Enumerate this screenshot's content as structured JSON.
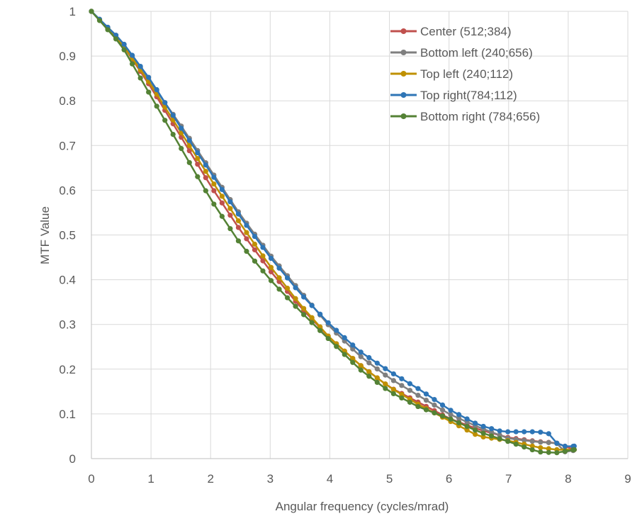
{
  "chart_data": {
    "type": "line",
    "title": "",
    "xlabel": "Angular frequency (cycles/mrad)",
    "ylabel": "MTF Value",
    "xlim": [
      0,
      9
    ],
    "ylim": [
      0,
      1
    ],
    "x_ticks": [
      "0",
      "1",
      "2",
      "3",
      "4",
      "5",
      "6",
      "7",
      "8",
      "9"
    ],
    "y_ticks": [
      "0",
      "0.1",
      "0.2",
      "0.3",
      "0.4",
      "0.5",
      "0.6",
      "0.7",
      "0.8",
      "0.9",
      "1"
    ],
    "grid": "vertical and horizontal",
    "legend_position": "top-right",
    "series": [
      {
        "name": "Center (512;384)",
        "color": "#c0504d",
        "points": [
          [
            0,
            1.0
          ],
          [
            0.5,
            0.93
          ],
          [
            1,
            0.83
          ],
          [
            1.5,
            0.72
          ],
          [
            2,
            0.61
          ],
          [
            2.5,
            0.51
          ],
          [
            3,
            0.42
          ],
          [
            3.5,
            0.34
          ],
          [
            4,
            0.27
          ],
          [
            4.5,
            0.21
          ],
          [
            5,
            0.16
          ],
          [
            5.5,
            0.125
          ],
          [
            6,
            0.09
          ],
          [
            6.5,
            0.065
          ],
          [
            7,
            0.047
          ],
          [
            7.5,
            0.038
          ],
          [
            7.8,
            0.035
          ],
          [
            8.1,
            0.02
          ]
        ]
      },
      {
        "name": "Bottom left (240;656)",
        "color": "#7f7f7f",
        "points": [
          [
            0,
            1.0
          ],
          [
            0.5,
            0.935
          ],
          [
            1,
            0.84
          ],
          [
            1.5,
            0.745
          ],
          [
            2,
            0.645
          ],
          [
            2.5,
            0.545
          ],
          [
            3,
            0.455
          ],
          [
            3.5,
            0.375
          ],
          [
            4,
            0.295
          ],
          [
            4.5,
            0.23
          ],
          [
            5,
            0.18
          ],
          [
            5.5,
            0.14
          ],
          [
            6,
            0.1
          ],
          [
            6.5,
            0.07
          ],
          [
            7,
            0.045
          ],
          [
            7.5,
            0.037
          ],
          [
            7.8,
            0.035
          ],
          [
            8.0,
            0.008
          ],
          [
            8.1,
            0.02
          ]
        ]
      },
      {
        "name": "Top left (240;112)",
        "color": "#bf9000",
        "points": [
          [
            0,
            1.0
          ],
          [
            0.5,
            0.93
          ],
          [
            1,
            0.835
          ],
          [
            1.5,
            0.73
          ],
          [
            2,
            0.625
          ],
          [
            2.5,
            0.525
          ],
          [
            3,
            0.43
          ],
          [
            3.5,
            0.345
          ],
          [
            4,
            0.27
          ],
          [
            4.5,
            0.21
          ],
          [
            5,
            0.16
          ],
          [
            5.5,
            0.12
          ],
          [
            6,
            0.085
          ],
          [
            6.5,
            0.05
          ],
          [
            7,
            0.04
          ],
          [
            7.5,
            0.025
          ],
          [
            7.8,
            0.02
          ],
          [
            8.1,
            0.02
          ]
        ]
      },
      {
        "name": "Top right(784;112)",
        "color": "#2e75b6",
        "points": [
          [
            0,
            1.0
          ],
          [
            0.5,
            0.935
          ],
          [
            1,
            0.845
          ],
          [
            1.5,
            0.74
          ],
          [
            2,
            0.64
          ],
          [
            2.5,
            0.54
          ],
          [
            3,
            0.45
          ],
          [
            3.5,
            0.37
          ],
          [
            4,
            0.3
          ],
          [
            4.5,
            0.24
          ],
          [
            5,
            0.195
          ],
          [
            5.5,
            0.155
          ],
          [
            6,
            0.11
          ],
          [
            6.5,
            0.075
          ],
          [
            6.9,
            0.06
          ],
          [
            7.5,
            0.06
          ],
          [
            7.7,
            0.055
          ],
          [
            7.8,
            0.035
          ],
          [
            8.0,
            0.025
          ],
          [
            8.1,
            0.028
          ]
        ]
      },
      {
        "name": "Bottom right (784;656)",
        "color": "#548235",
        "points": [
          [
            0,
            1.0
          ],
          [
            0.5,
            0.925
          ],
          [
            1,
            0.81
          ],
          [
            1.5,
            0.695
          ],
          [
            2,
            0.58
          ],
          [
            2.5,
            0.48
          ],
          [
            3,
            0.4
          ],
          [
            3.5,
            0.33
          ],
          [
            4,
            0.265
          ],
          [
            4.5,
            0.2
          ],
          [
            5,
            0.15
          ],
          [
            5.5,
            0.115
          ],
          [
            6,
            0.09
          ],
          [
            6.5,
            0.06
          ],
          [
            7,
            0.038
          ],
          [
            7.5,
            0.015
          ],
          [
            7.8,
            0.013
          ],
          [
            8.1,
            0.02
          ]
        ]
      }
    ]
  }
}
